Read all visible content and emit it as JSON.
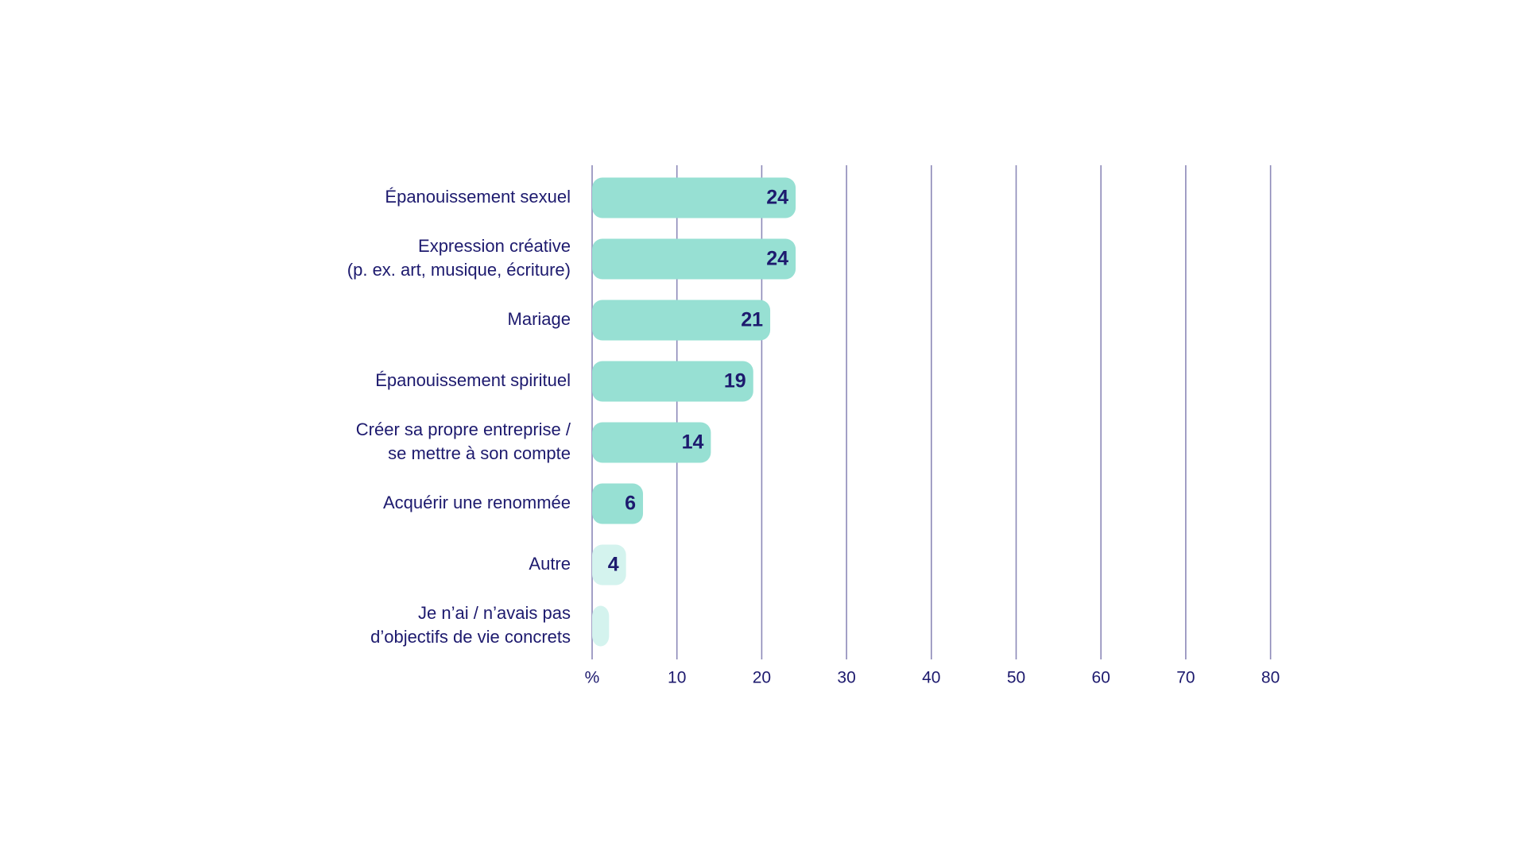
{
  "chart_data": {
    "type": "bar",
    "orientation": "horizontal",
    "categories": [
      [
        "Épanouissement sexuel"
      ],
      [
        "Expression créative",
        "(p. ex. art, musique, écriture)"
      ],
      [
        "Mariage"
      ],
      [
        "Épanouissement spirituel"
      ],
      [
        "Créer sa propre entreprise /",
        "se mettre à son compte"
      ],
      [
        "Acquérir une renommée"
      ],
      [
        "Autre"
      ],
      [
        "Je n’ai / n’avais pas",
        "d’objectifs de vie concrets"
      ]
    ],
    "values": [
      24,
      24,
      21,
      19,
      14,
      6,
      4,
      2
    ],
    "value_labels": [
      "24",
      "24",
      "21",
      "19",
      "14",
      "6",
      "4",
      ""
    ],
    "xlim": [
      0,
      80
    ],
    "x_ticks": [
      0,
      10,
      20,
      30,
      40,
      50,
      60,
      70,
      80
    ],
    "x_tick_labels": [
      "%",
      "10",
      "20",
      "30",
      "40",
      "50",
      "60",
      "70",
      "80"
    ],
    "grid": true,
    "colors": {
      "bar_primary": "#97e0d3",
      "bar_light": "#d4f3ee",
      "text": "#1d1a6e",
      "grid": "#8c89b8"
    },
    "bar_color_keys": [
      "bar_primary",
      "bar_primary",
      "bar_primary",
      "bar_primary",
      "bar_primary",
      "bar_primary",
      "bar_light",
      "bar_light"
    ]
  }
}
